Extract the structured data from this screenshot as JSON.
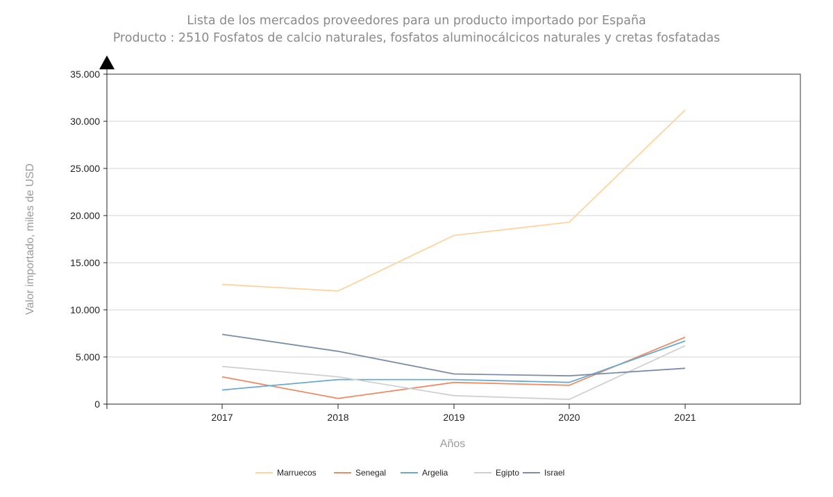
{
  "chart_data": {
    "type": "line",
    "title": "Lista de los mercados proveedores para un producto importado por España",
    "subtitle": "Producto : 2510 Fosfatos de calcio naturales, fosfatos aluminocálcicos naturales y cretas fosfatadas",
    "xlabel": "Años",
    "ylabel": "Valor importado, miles de USD",
    "x": [
      "2017",
      "2018",
      "2019",
      "2020",
      "2021"
    ],
    "ylim": [
      0,
      35000
    ],
    "yticks": [
      0,
      5000,
      10000,
      15000,
      20000,
      25000,
      30000,
      35000
    ],
    "ytick_labels": [
      "0",
      "5.000",
      "10.000",
      "15.000",
      "20.000",
      "25.000",
      "30.000",
      "35.000"
    ],
    "grid": true,
    "legend_position": "bottom",
    "series": [
      {
        "name": "Marruecos",
        "color": "#fdd49e",
        "values": [
          12700,
          12000,
          17900,
          19300,
          31200
        ]
      },
      {
        "name": "Senegal",
        "color": "#ef8a62",
        "values": [
          2900,
          600,
          2300,
          2000,
          7100
        ]
      },
      {
        "name": "Argelia",
        "color": "#67a9cf",
        "values": [
          1500,
          2600,
          2600,
          2300,
          6700
        ]
      },
      {
        "name": "Egipto",
        "color": "#d0d0d0",
        "values": [
          4000,
          2900,
          900,
          500,
          6200
        ]
      },
      {
        "name": "Israel",
        "color": "#7a8eaa",
        "values": [
          7400,
          5600,
          3200,
          3000,
          3800
        ]
      }
    ]
  }
}
